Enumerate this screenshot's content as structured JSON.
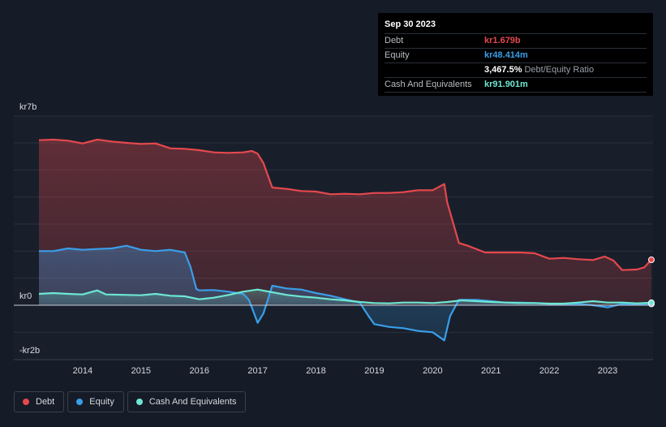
{
  "tooltip": {
    "date": "Sep 30 2023",
    "rows": [
      {
        "label": "Debt",
        "value": "kr1.679b",
        "color": "#e5484d"
      },
      {
        "label": "Equity",
        "value": "kr48.414m",
        "color": "#3a9ee8"
      },
      {
        "label": "",
        "value": "3,467.5%",
        "sub": "Debt/Equity Ratio",
        "color": "#ffffff"
      },
      {
        "label": "Cash And Equivalents",
        "value": "kr91.901m",
        "color": "#6ee7d3"
      }
    ]
  },
  "legend": [
    {
      "label": "Debt",
      "color": "#e5484d"
    },
    {
      "label": "Equity",
      "color": "#3a9ee8"
    },
    {
      "label": "Cash And Equivalents",
      "color": "#6ee7d3"
    }
  ],
  "chart_data": {
    "type": "area",
    "title": "",
    "xlabel": "",
    "ylabel": "",
    "units": "kr billions",
    "xlim": [
      2013.25,
      2023.75
    ],
    "ylim": [
      -2,
      7
    ],
    "y_tick_labels": [
      {
        "value": 7,
        "label": "kr7b"
      },
      {
        "value": 0,
        "label": "kr0"
      },
      {
        "value": -2,
        "label": "-kr2b"
      }
    ],
    "x_ticks": [
      2014,
      2015,
      2016,
      2017,
      2018,
      2019,
      2020,
      2021,
      2022,
      2023
    ],
    "x_tick_labels": [
      "2014",
      "2015",
      "2016",
      "2017",
      "2018",
      "2019",
      "2020",
      "2021",
      "2022",
      "2023"
    ],
    "series": [
      {
        "name": "Debt",
        "color": "#e5484d",
        "points": [
          [
            2013.25,
            6.1
          ],
          [
            2013.5,
            6.12
          ],
          [
            2013.75,
            6.08
          ],
          [
            2014.0,
            5.98
          ],
          [
            2014.25,
            6.12
          ],
          [
            2014.5,
            6.05
          ],
          [
            2014.75,
            6.0
          ],
          [
            2015.0,
            5.96
          ],
          [
            2015.25,
            5.98
          ],
          [
            2015.5,
            5.8
          ],
          [
            2015.75,
            5.78
          ],
          [
            2016.0,
            5.73
          ],
          [
            2016.25,
            5.65
          ],
          [
            2016.5,
            5.63
          ],
          [
            2016.75,
            5.65
          ],
          [
            2016.9,
            5.7
          ],
          [
            2017.0,
            5.6
          ],
          [
            2017.1,
            5.25
          ],
          [
            2017.25,
            4.35
          ],
          [
            2017.5,
            4.3
          ],
          [
            2017.75,
            4.22
          ],
          [
            2018.0,
            4.2
          ],
          [
            2018.25,
            4.1
          ],
          [
            2018.5,
            4.12
          ],
          [
            2018.75,
            4.1
          ],
          [
            2019.0,
            4.15
          ],
          [
            2019.25,
            4.15
          ],
          [
            2019.5,
            4.18
          ],
          [
            2019.75,
            4.25
          ],
          [
            2020.0,
            4.25
          ],
          [
            2020.2,
            4.48
          ],
          [
            2020.25,
            3.8
          ],
          [
            2020.45,
            2.3
          ],
          [
            2020.6,
            2.2
          ],
          [
            2020.9,
            1.95
          ],
          [
            2021.25,
            1.95
          ],
          [
            2021.5,
            1.95
          ],
          [
            2021.75,
            1.92
          ],
          [
            2022.0,
            1.72
          ],
          [
            2022.25,
            1.75
          ],
          [
            2022.5,
            1.7
          ],
          [
            2022.75,
            1.67
          ],
          [
            2022.95,
            1.8
          ],
          [
            2023.1,
            1.65
          ],
          [
            2023.25,
            1.3
          ],
          [
            2023.5,
            1.32
          ],
          [
            2023.63,
            1.4
          ],
          [
            2023.75,
            1.679
          ]
        ]
      },
      {
        "name": "Equity",
        "color": "#3a9ee8",
        "points": [
          [
            2013.25,
            2.0
          ],
          [
            2013.5,
            2.0
          ],
          [
            2013.75,
            2.1
          ],
          [
            2014.0,
            2.05
          ],
          [
            2014.25,
            2.08
          ],
          [
            2014.5,
            2.1
          ],
          [
            2014.75,
            2.2
          ],
          [
            2015.0,
            2.05
          ],
          [
            2015.25,
            2.0
          ],
          [
            2015.5,
            2.05
          ],
          [
            2015.75,
            1.95
          ],
          [
            2015.85,
            1.4
          ],
          [
            2015.95,
            0.6
          ],
          [
            2016.0,
            0.55
          ],
          [
            2016.25,
            0.56
          ],
          [
            2016.5,
            0.5
          ],
          [
            2016.75,
            0.42
          ],
          [
            2016.85,
            0.2
          ],
          [
            2017.0,
            -0.65
          ],
          [
            2017.1,
            -0.3
          ],
          [
            2017.25,
            0.72
          ],
          [
            2017.5,
            0.62
          ],
          [
            2017.75,
            0.58
          ],
          [
            2018.0,
            0.45
          ],
          [
            2018.25,
            0.35
          ],
          [
            2018.5,
            0.22
          ],
          [
            2018.75,
            0.1
          ],
          [
            2018.9,
            -0.4
          ],
          [
            2019.0,
            -0.7
          ],
          [
            2019.25,
            -0.8
          ],
          [
            2019.5,
            -0.85
          ],
          [
            2019.75,
            -0.95
          ],
          [
            2020.0,
            -1.0
          ],
          [
            2020.2,
            -1.3
          ],
          [
            2020.3,
            -0.4
          ],
          [
            2020.45,
            0.2
          ],
          [
            2020.75,
            0.2
          ],
          [
            2021.0,
            0.15
          ],
          [
            2021.25,
            0.1
          ],
          [
            2021.5,
            0.1
          ],
          [
            2021.75,
            0.08
          ],
          [
            2022.0,
            0.05
          ],
          [
            2022.25,
            0.05
          ],
          [
            2022.5,
            0.05
          ],
          [
            2022.75,
            0.0
          ],
          [
            2023.0,
            -0.08
          ],
          [
            2023.25,
            0.05
          ],
          [
            2023.5,
            0.04
          ],
          [
            2023.75,
            0.048
          ]
        ]
      },
      {
        "name": "Cash And Equivalents",
        "color": "#6ee7d3",
        "points": [
          [
            2013.25,
            0.42
          ],
          [
            2013.5,
            0.45
          ],
          [
            2013.75,
            0.42
          ],
          [
            2014.0,
            0.4
          ],
          [
            2014.25,
            0.55
          ],
          [
            2014.4,
            0.4
          ],
          [
            2014.75,
            0.38
          ],
          [
            2015.0,
            0.37
          ],
          [
            2015.25,
            0.42
          ],
          [
            2015.5,
            0.35
          ],
          [
            2015.75,
            0.33
          ],
          [
            2016.0,
            0.22
          ],
          [
            2016.25,
            0.28
          ],
          [
            2016.5,
            0.38
          ],
          [
            2016.75,
            0.5
          ],
          [
            2017.0,
            0.58
          ],
          [
            2017.25,
            0.48
          ],
          [
            2017.5,
            0.38
          ],
          [
            2017.75,
            0.32
          ],
          [
            2018.0,
            0.28
          ],
          [
            2018.25,
            0.22
          ],
          [
            2018.5,
            0.18
          ],
          [
            2018.75,
            0.12
          ],
          [
            2019.0,
            0.08
          ],
          [
            2019.25,
            0.07
          ],
          [
            2019.5,
            0.1
          ],
          [
            2019.75,
            0.1
          ],
          [
            2020.0,
            0.08
          ],
          [
            2020.25,
            0.12
          ],
          [
            2020.5,
            0.18
          ],
          [
            2020.75,
            0.15
          ],
          [
            2021.0,
            0.12
          ],
          [
            2021.25,
            0.1
          ],
          [
            2021.5,
            0.08
          ],
          [
            2021.75,
            0.08
          ],
          [
            2022.0,
            0.06
          ],
          [
            2022.25,
            0.06
          ],
          [
            2022.5,
            0.1
          ],
          [
            2022.75,
            0.15
          ],
          [
            2023.0,
            0.1
          ],
          [
            2023.25,
            0.1
          ],
          [
            2023.5,
            0.07
          ],
          [
            2023.75,
            0.092
          ]
        ]
      }
    ],
    "legend_position": "bottom-left"
  }
}
